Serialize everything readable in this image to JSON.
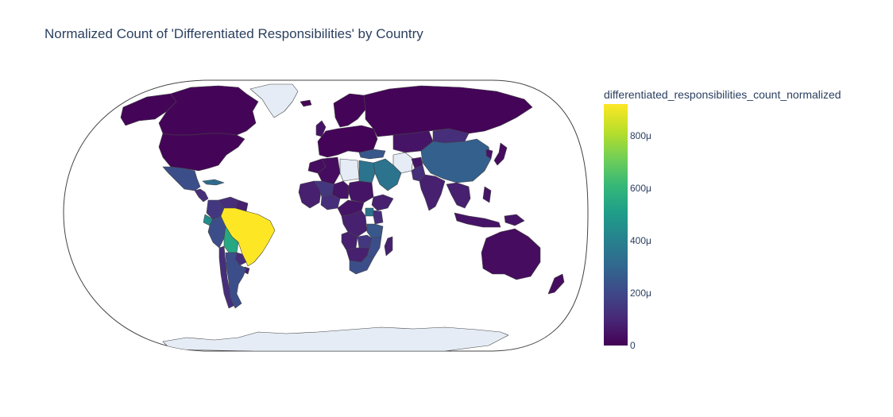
{
  "chart": {
    "title": "Normalized Count of 'Differentiated Responsibilities' by Country"
  },
  "colorbar": {
    "title": "differentiated_responsibilities_count_normalized",
    "ticks": [
      "0",
      "200μ",
      "400μ",
      "600μ",
      "800μ"
    ]
  },
  "colors": {
    "no_data": "#e5ecf6",
    "border": "#444444",
    "frame": "#444444",
    "scale": [
      "#440154",
      "#482878",
      "#3e4989",
      "#31688e",
      "#26828e",
      "#1f9e89",
      "#35b779",
      "#6ece58",
      "#b5de2b",
      "#fde725"
    ]
  },
  "chart_data": {
    "type": "choropleth",
    "projection": "natural earth",
    "value_unit": "normalized count",
    "color_range": [
      0,
      0.00092
    ],
    "colorbar_ticks": [
      0,
      0.0002,
      0.0004,
      0.0006,
      0.0008
    ],
    "regions": [
      {
        "name": "Canada",
        "value": 1e-05
      },
      {
        "name": "United States",
        "value": 1e-05
      },
      {
        "name": "Alaska",
        "value": 1e-05
      },
      {
        "name": "Mexico",
        "value": 0.00022
      },
      {
        "name": "Central America",
        "value": 0.00012
      },
      {
        "name": "Cuba",
        "value": 0.00032
      },
      {
        "name": "Greenland",
        "value": null
      },
      {
        "name": "Brazil",
        "value": 0.00092
      },
      {
        "name": "Bolivia",
        "value": 0.00055
      },
      {
        "name": "Peru",
        "value": 0.00022
      },
      {
        "name": "Ecuador",
        "value": 0.00045
      },
      {
        "name": "Colombia",
        "value": 0.00015
      },
      {
        "name": "Venezuela",
        "value": 0.00012
      },
      {
        "name": "Guianas",
        "value": 8e-05
      },
      {
        "name": "Chile",
        "value": 0.00012
      },
      {
        "name": "Argentina",
        "value": 0.00022
      },
      {
        "name": "Paraguay",
        "value": 0.00012
      },
      {
        "name": "Uruguay",
        "value": 8e-05
      },
      {
        "name": "Europe",
        "value": 1e-05
      },
      {
        "name": "Scandinavia",
        "value": 1e-05
      },
      {
        "name": "United Kingdom",
        "value": 5e-05
      },
      {
        "name": "Iceland",
        "value": 1e-05
      },
      {
        "name": "Russia",
        "value": 1e-05
      },
      {
        "name": "Turkey",
        "value": 0.00025
      },
      {
        "name": "China",
        "value": 0.00028
      },
      {
        "name": "Mongolia",
        "value": 0.00012
      },
      {
        "name": "Central Asia",
        "value": 5e-05
      },
      {
        "name": "India",
        "value": 8e-05
      },
      {
        "name": "Pakistan",
        "value": 0.00012
      },
      {
        "name": "Afghanistan",
        "value": 5e-05
      },
      {
        "name": "Iran",
        "value": null
      },
      {
        "name": "Saudi Arabia",
        "value": 0.00035
      },
      {
        "name": "Egypt",
        "value": 0.00035
      },
      {
        "name": "Libya",
        "value": null
      },
      {
        "name": "Algeria",
        "value": 3e-05
      },
      {
        "name": "Morocco",
        "value": 3e-05
      },
      {
        "name": "West Africa",
        "value": 8e-05
      },
      {
        "name": "Mali",
        "value": 0.00015
      },
      {
        "name": "Nigeria",
        "value": 0.00012
      },
      {
        "name": "Chad",
        "value": 5e-05
      },
      {
        "name": "Sudan",
        "value": 5e-05
      },
      {
        "name": "Ethiopia",
        "value": 8e-05
      },
      {
        "name": "Uganda",
        "value": 0.00035
      },
      {
        "name": "Kenya",
        "value": 0.00012
      },
      {
        "name": "Tanzania",
        "value": 0.00025
      },
      {
        "name": "Central Africa",
        "value": 5e-05
      },
      {
        "name": "DR Congo",
        "value": 8e-05
      },
      {
        "name": "Angola",
        "value": 8e-05
      },
      {
        "name": "Zambia",
        "value": 0.00015
      },
      {
        "name": "Mozambique",
        "value": 0.00022
      },
      {
        "name": "Madagascar",
        "value": 8e-05
      },
      {
        "name": "Southern Africa",
        "value": 8e-05
      },
      {
        "name": "South Africa",
        "value": 0.00022
      },
      {
        "name": "Southeast Asia",
        "value": 8e-05
      },
      {
        "name": "Japan",
        "value": 3e-05
      },
      {
        "name": "Korea",
        "value": 5e-05
      },
      {
        "name": "Philippines",
        "value": 5e-05
      },
      {
        "name": "Indonesia",
        "value": 5e-05
      },
      {
        "name": "Papua New Guinea",
        "value": 5e-05
      },
      {
        "name": "Australia",
        "value": 3e-05
      },
      {
        "name": "New Zealand",
        "value": 3e-05
      },
      {
        "name": "Antarctica",
        "value": null
      }
    ]
  }
}
